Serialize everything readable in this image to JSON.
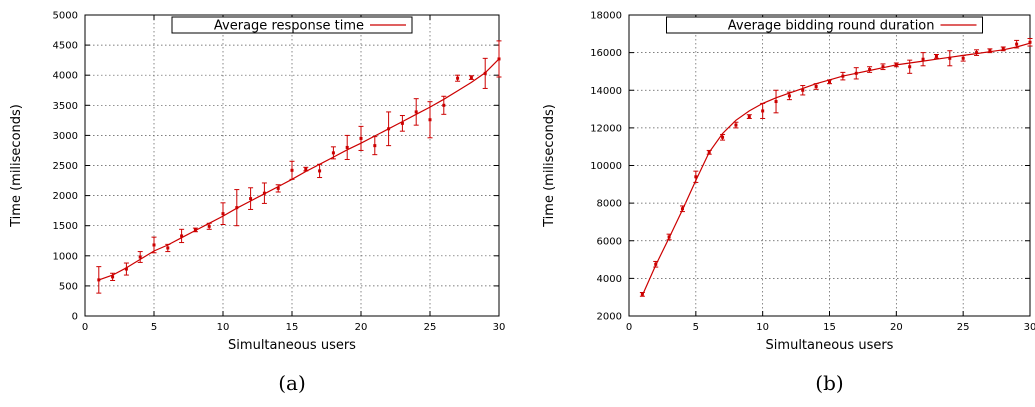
{
  "chart_data": [
    {
      "type": "line",
      "caption": "(a)",
      "xlabel": "Simultaneous users",
      "ylabel": "Time (miliseconds)",
      "xlim": [
        0,
        30
      ],
      "ylim": [
        0,
        5000
      ],
      "xticks": [
        0,
        5,
        10,
        15,
        20,
        25,
        30
      ],
      "yticks": [
        0,
        500,
        1000,
        1500,
        2000,
        2500,
        3000,
        3500,
        4000,
        4500,
        5000
      ],
      "grid": true,
      "legend": "top-center",
      "color": "#cc0000",
      "series": [
        {
          "name": "Average response time",
          "x": [
            1,
            2,
            3,
            4,
            5,
            6,
            7,
            8,
            9,
            10,
            11,
            12,
            13,
            14,
            15,
            16,
            17,
            18,
            19,
            20,
            21,
            22,
            23,
            24,
            25,
            26,
            27,
            28,
            29,
            30
          ],
          "y": [
            600,
            650,
            780,
            980,
            1180,
            1130,
            1330,
            1430,
            1490,
            1700,
            1800,
            1950,
            2040,
            2120,
            2420,
            2440,
            2410,
            2710,
            2800,
            2950,
            2830,
            3110,
            3200,
            3390,
            3260,
            3500,
            3950,
            3960,
            4030,
            4270
          ],
          "err": [
            220,
            60,
            100,
            90,
            130,
            60,
            110,
            30,
            50,
            180,
            300,
            180,
            170,
            60,
            150,
            30,
            110,
            100,
            200,
            200,
            150,
            280,
            130,
            220,
            300,
            150,
            50,
            30,
            250,
            300
          ]
        }
      ],
      "fit": {
        "x": [
          1,
          2,
          3,
          4,
          5,
          6,
          7,
          8,
          9,
          10,
          11,
          12,
          13,
          14,
          15,
          16,
          17,
          18,
          19,
          20,
          21,
          22,
          23,
          24,
          25,
          26,
          27,
          28,
          29,
          30
        ],
        "y": [
          600,
          680,
          800,
          940,
          1080,
          1180,
          1300,
          1420,
          1540,
          1660,
          1790,
          1910,
          2030,
          2150,
          2270,
          2400,
          2520,
          2640,
          2760,
          2870,
          2990,
          3110,
          3230,
          3350,
          3470,
          3600,
          3740,
          3880,
          4040,
          4270
        ]
      }
    },
    {
      "type": "line",
      "caption": "(b)",
      "xlabel": "Simultaneous users",
      "ylabel": "Time (miliseconds)",
      "xlim": [
        0,
        30
      ],
      "ylim": [
        2000,
        18000
      ],
      "xticks": [
        0,
        5,
        10,
        15,
        20,
        25,
        30
      ],
      "yticks": [
        2000,
        4000,
        6000,
        8000,
        10000,
        12000,
        14000,
        16000,
        18000
      ],
      "grid": true,
      "legend": "top-center",
      "color": "#cc0000",
      "series": [
        {
          "name": "Average bidding round duration",
          "x": [
            1,
            2,
            3,
            4,
            5,
            6,
            7,
            8,
            9,
            10,
            11,
            12,
            13,
            14,
            15,
            16,
            17,
            18,
            19,
            20,
            21,
            22,
            23,
            24,
            25,
            26,
            27,
            28,
            29,
            30
          ],
          "y": [
            3150,
            4750,
            6200,
            7700,
            9400,
            10700,
            11500,
            12150,
            12600,
            12900,
            13400,
            13700,
            14000,
            14200,
            14450,
            14750,
            14900,
            15100,
            15250,
            15350,
            15250,
            15650,
            15800,
            15700,
            15700,
            16000,
            16100,
            16200,
            16450,
            16550
          ],
          "err": [
            100,
            150,
            150,
            150,
            300,
            100,
            150,
            150,
            100,
            400,
            600,
            200,
            250,
            150,
            100,
            200,
            300,
            150,
            150,
            100,
            350,
            350,
            100,
            400,
            150,
            150,
            100,
            100,
            200,
            200
          ]
        }
      ],
      "fit": {
        "x": [
          1,
          2,
          3,
          4,
          5,
          6,
          7,
          8,
          9,
          10,
          11,
          12,
          13,
          14,
          15,
          16,
          17,
          18,
          19,
          20,
          21,
          22,
          23,
          24,
          25,
          26,
          27,
          28,
          29,
          30
        ],
        "y": [
          3100,
          4700,
          6150,
          7650,
          9200,
          10700,
          11700,
          12400,
          12900,
          13300,
          13600,
          13850,
          14100,
          14350,
          14550,
          14750,
          14900,
          15050,
          15200,
          15350,
          15450,
          15550,
          15650,
          15750,
          15850,
          15950,
          16050,
          16150,
          16300,
          16500
        ]
      }
    }
  ]
}
